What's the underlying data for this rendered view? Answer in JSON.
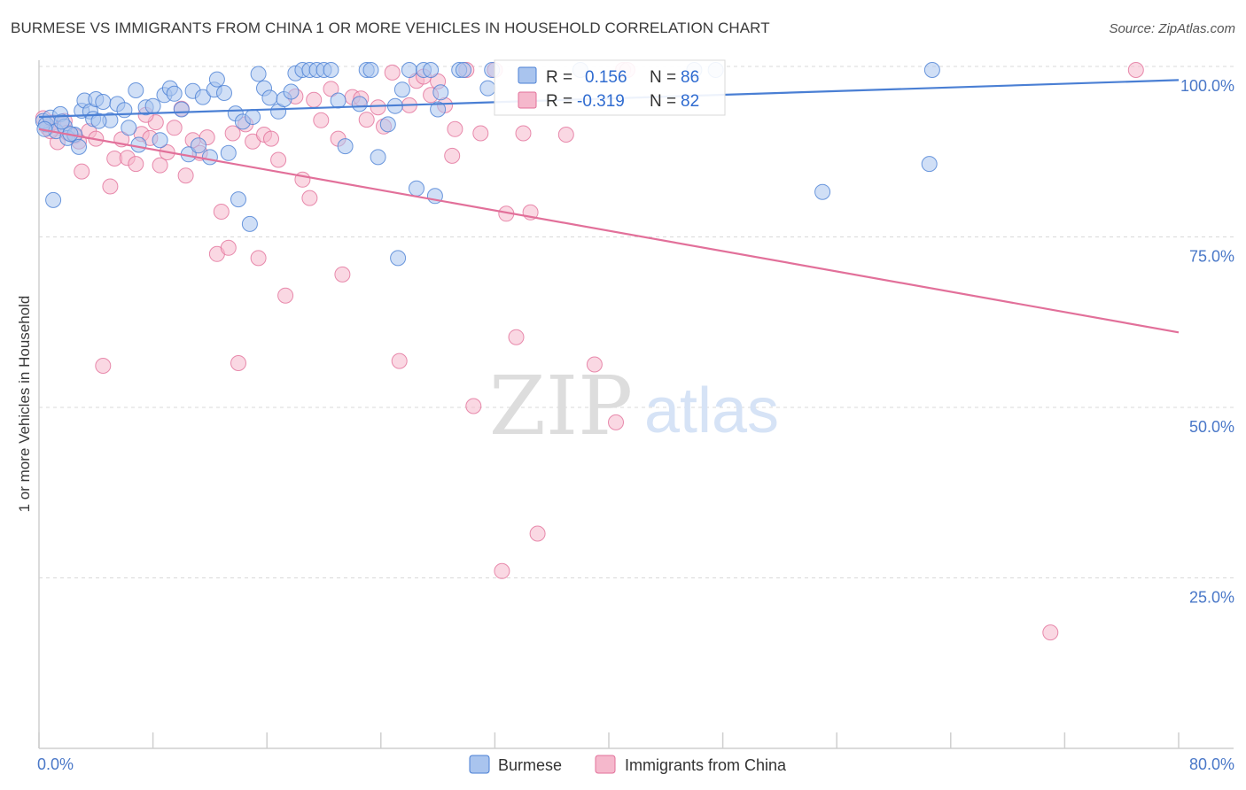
{
  "title": "BURMESE VS IMMIGRANTS FROM CHINA 1 OR MORE VEHICLES IN HOUSEHOLD CORRELATION CHART",
  "source": "Source: ZipAtlas.com",
  "watermark": {
    "zip": "ZIP",
    "atlas": "atlas"
  },
  "colors": {
    "burmese": "#4a7fd4",
    "burmese_fill": "#a9c4ee",
    "china": "#e2709a",
    "china_fill": "#f5b8cc",
    "axis_text": "#4a78c8"
  },
  "chart_data": {
    "type": "scatter",
    "title": "BURMESE VS IMMIGRANTS FROM CHINA 1 OR MORE VEHICLES IN HOUSEHOLD CORRELATION CHART",
    "xlabel": "",
    "ylabel": "1 or more Vehicles in Household",
    "xlim": [
      0,
      80
    ],
    "ylim": [
      0,
      100
    ],
    "x_tick_labels": [
      "0.0%",
      "80.0%"
    ],
    "y_ticks": [
      25,
      50,
      75,
      100
    ],
    "y_tick_labels": [
      "25.0%",
      "50.0%",
      "75.0%",
      "100.0%"
    ],
    "grid": true,
    "legend_position": "top-center",
    "series": [
      {
        "name": "Burmese",
        "R": "0.156",
        "N": "86",
        "r_label": "R =",
        "n_label": "N =",
        "trend": {
          "x": [
            0,
            80
          ],
          "y": [
            92.6,
            98.0
          ]
        },
        "points": [
          [
            0.3,
            92.0
          ],
          [
            0.5,
            91.5
          ],
          [
            0.8,
            92.5
          ],
          [
            1.0,
            80.4
          ],
          [
            1.2,
            90.5
          ],
          [
            1.5,
            93.0
          ],
          [
            1.8,
            91.2
          ],
          [
            2.0,
            89.5
          ],
          [
            2.5,
            90.0
          ],
          [
            2.8,
            88.2
          ],
          [
            3.0,
            93.5
          ],
          [
            3.2,
            95.0
          ],
          [
            3.6,
            93.4
          ],
          [
            3.8,
            92.3
          ],
          [
            4.0,
            95.2
          ],
          [
            4.5,
            94.8
          ],
          [
            5.0,
            92.1
          ],
          [
            5.5,
            94.5
          ],
          [
            6.0,
            93.6
          ],
          [
            6.3,
            91.0
          ],
          [
            6.8,
            96.5
          ],
          [
            7.0,
            88.5
          ],
          [
            7.5,
            94.0
          ],
          [
            8.0,
            94.2
          ],
          [
            8.5,
            89.2
          ],
          [
            8.8,
            95.8
          ],
          [
            9.2,
            96.8
          ],
          [
            9.5,
            96.0
          ],
          [
            10.0,
            93.7
          ],
          [
            10.5,
            87.1
          ],
          [
            10.8,
            96.4
          ],
          [
            11.2,
            88.4
          ],
          [
            11.5,
            95.5
          ],
          [
            12.0,
            86.7
          ],
          [
            12.3,
            96.6
          ],
          [
            12.5,
            98.1
          ],
          [
            13.0,
            96.1
          ],
          [
            13.3,
            87.3
          ],
          [
            13.8,
            93.1
          ],
          [
            14.0,
            80.5
          ],
          [
            14.3,
            91.9
          ],
          [
            14.8,
            76.9
          ],
          [
            15.0,
            92.6
          ],
          [
            15.4,
            98.9
          ],
          [
            15.8,
            96.8
          ],
          [
            16.2,
            95.4
          ],
          [
            16.8,
            93.4
          ],
          [
            17.2,
            95.2
          ],
          [
            17.7,
            96.3
          ],
          [
            18.0,
            99.0
          ],
          [
            18.5,
            100.0
          ],
          [
            19.0,
            100.0
          ],
          [
            19.5,
            100.0
          ],
          [
            20.0,
            100.0
          ],
          [
            20.5,
            100.0
          ],
          [
            21.0,
            95.0
          ],
          [
            21.5,
            88.3
          ],
          [
            22.5,
            94.5
          ],
          [
            23.0,
            100.0
          ],
          [
            23.3,
            100.0
          ],
          [
            23.8,
            86.7
          ],
          [
            24.5,
            91.5
          ],
          [
            25.0,
            94.2
          ],
          [
            25.5,
            96.6
          ],
          [
            25.2,
            71.9
          ],
          [
            26.0,
            100.0
          ],
          [
            26.5,
            82.1
          ],
          [
            27.0,
            100.0
          ],
          [
            27.5,
            100.0
          ],
          [
            27.8,
            81.0
          ],
          [
            28.0,
            93.7
          ],
          [
            28.2,
            96.2
          ],
          [
            29.5,
            100.0
          ],
          [
            29.8,
            100.0
          ],
          [
            31.5,
            96.8
          ],
          [
            31.8,
            99.5
          ],
          [
            38.0,
            100.0
          ],
          [
            46.0,
            100.0
          ],
          [
            47.5,
            100.0
          ],
          [
            55.0,
            81.6
          ],
          [
            62.5,
            85.7
          ],
          [
            62.7,
            100.0
          ],
          [
            0.4,
            90.8
          ],
          [
            1.6,
            91.9
          ],
          [
            2.2,
            90.1
          ],
          [
            4.2,
            92.0
          ]
        ]
      },
      {
        "name": "Immigrants from China",
        "R": "-0.319",
        "N": "82",
        "r_label": "R =",
        "n_label": "N =",
        "trend": {
          "x": [
            0,
            80
          ],
          "y": [
            90.8,
            61.0
          ]
        },
        "points": [
          [
            0.3,
            92.4
          ],
          [
            0.6,
            91.0
          ],
          [
            1.0,
            91.8
          ],
          [
            1.3,
            88.9
          ],
          [
            1.8,
            92.0
          ],
          [
            2.0,
            90.3
          ],
          [
            2.5,
            89.8
          ],
          [
            3.0,
            84.6
          ],
          [
            3.5,
            90.5
          ],
          [
            4.0,
            89.4
          ],
          [
            4.5,
            56.1
          ],
          [
            5.0,
            82.4
          ],
          [
            5.3,
            86.5
          ],
          [
            5.8,
            89.3
          ],
          [
            6.2,
            86.6
          ],
          [
            6.8,
            85.7
          ],
          [
            7.2,
            90.1
          ],
          [
            7.8,
            89.5
          ],
          [
            8.2,
            91.8
          ],
          [
            8.5,
            85.5
          ],
          [
            9.0,
            87.4
          ],
          [
            9.5,
            91.0
          ],
          [
            10.0,
            93.8
          ],
          [
            10.3,
            84.0
          ],
          [
            10.8,
            89.2
          ],
          [
            11.3,
            87.3
          ],
          [
            11.8,
            89.6
          ],
          [
            12.5,
            72.5
          ],
          [
            12.8,
            78.7
          ],
          [
            13.3,
            73.4
          ],
          [
            13.6,
            90.2
          ],
          [
            14.0,
            56.5
          ],
          [
            14.5,
            91.5
          ],
          [
            15.0,
            89.0
          ],
          [
            15.4,
            71.9
          ],
          [
            15.8,
            90.0
          ],
          [
            16.3,
            89.4
          ],
          [
            16.8,
            86.3
          ],
          [
            17.3,
            66.4
          ],
          [
            18.0,
            95.6
          ],
          [
            18.5,
            83.4
          ],
          [
            19.0,
            80.7
          ],
          [
            19.3,
            95.1
          ],
          [
            19.8,
            92.1
          ],
          [
            20.5,
            96.7
          ],
          [
            21.0,
            89.4
          ],
          [
            21.3,
            69.5
          ],
          [
            22.0,
            95.5
          ],
          [
            22.6,
            95.3
          ],
          [
            23.0,
            92.2
          ],
          [
            23.8,
            94.0
          ],
          [
            24.2,
            91.2
          ],
          [
            24.8,
            99.1
          ],
          [
            25.3,
            56.8
          ],
          [
            26.0,
            94.3
          ],
          [
            26.5,
            97.9
          ],
          [
            27.0,
            98.5
          ],
          [
            27.5,
            95.8
          ],
          [
            28.0,
            97.8
          ],
          [
            28.5,
            94.3
          ],
          [
            29.0,
            86.9
          ],
          [
            29.2,
            90.8
          ],
          [
            30.0,
            100.0
          ],
          [
            30.5,
            50.2
          ],
          [
            31.0,
            90.2
          ],
          [
            32.0,
            100.0
          ],
          [
            32.5,
            26.0
          ],
          [
            32.8,
            78.4
          ],
          [
            33.5,
            60.3
          ],
          [
            34.0,
            90.2
          ],
          [
            34.5,
            78.6
          ],
          [
            35.0,
            31.5
          ],
          [
            37.0,
            90.0
          ],
          [
            39.0,
            56.3
          ],
          [
            40.5,
            47.8
          ],
          [
            41.0,
            100.0
          ],
          [
            41.3,
            100.0
          ],
          [
            71.0,
            17.0
          ],
          [
            77.0,
            100.0
          ],
          [
            0.8,
            90.5
          ],
          [
            2.8,
            89.0
          ],
          [
            7.5,
            92.9
          ]
        ]
      }
    ]
  }
}
